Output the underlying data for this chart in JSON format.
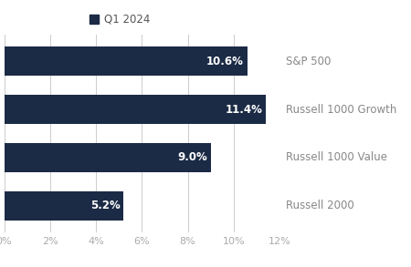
{
  "categories": [
    "S&P 500",
    "Russell 1000 Growth",
    "Russell 1000 Value",
    "Russell 2000"
  ],
  "values": [
    10.6,
    11.4,
    9.0,
    5.2
  ],
  "bar_color": "#1b2a45",
  "bar_labels": [
    "10.6%",
    "11.4%",
    "9.0%",
    "5.2%"
  ],
  "legend_label": "Q1 2024",
  "legend_marker_color": "#1b2a45",
  "xlim": [
    0,
    12
  ],
  "xtick_values": [
    0,
    2,
    4,
    6,
    8,
    10,
    12
  ],
  "background_color": "#ffffff",
  "grid_color": "#cccccc",
  "label_color": "#ffffff",
  "label_fontsize": 8.5,
  "tick_color": "#aaaaaa",
  "tick_label_color": "#aaaaaa",
  "category_label_color": "#888888",
  "category_label_fontsize": 8.5,
  "bar_height": 0.6,
  "legend_fontsize": 8.5,
  "legend_color": "#555555"
}
